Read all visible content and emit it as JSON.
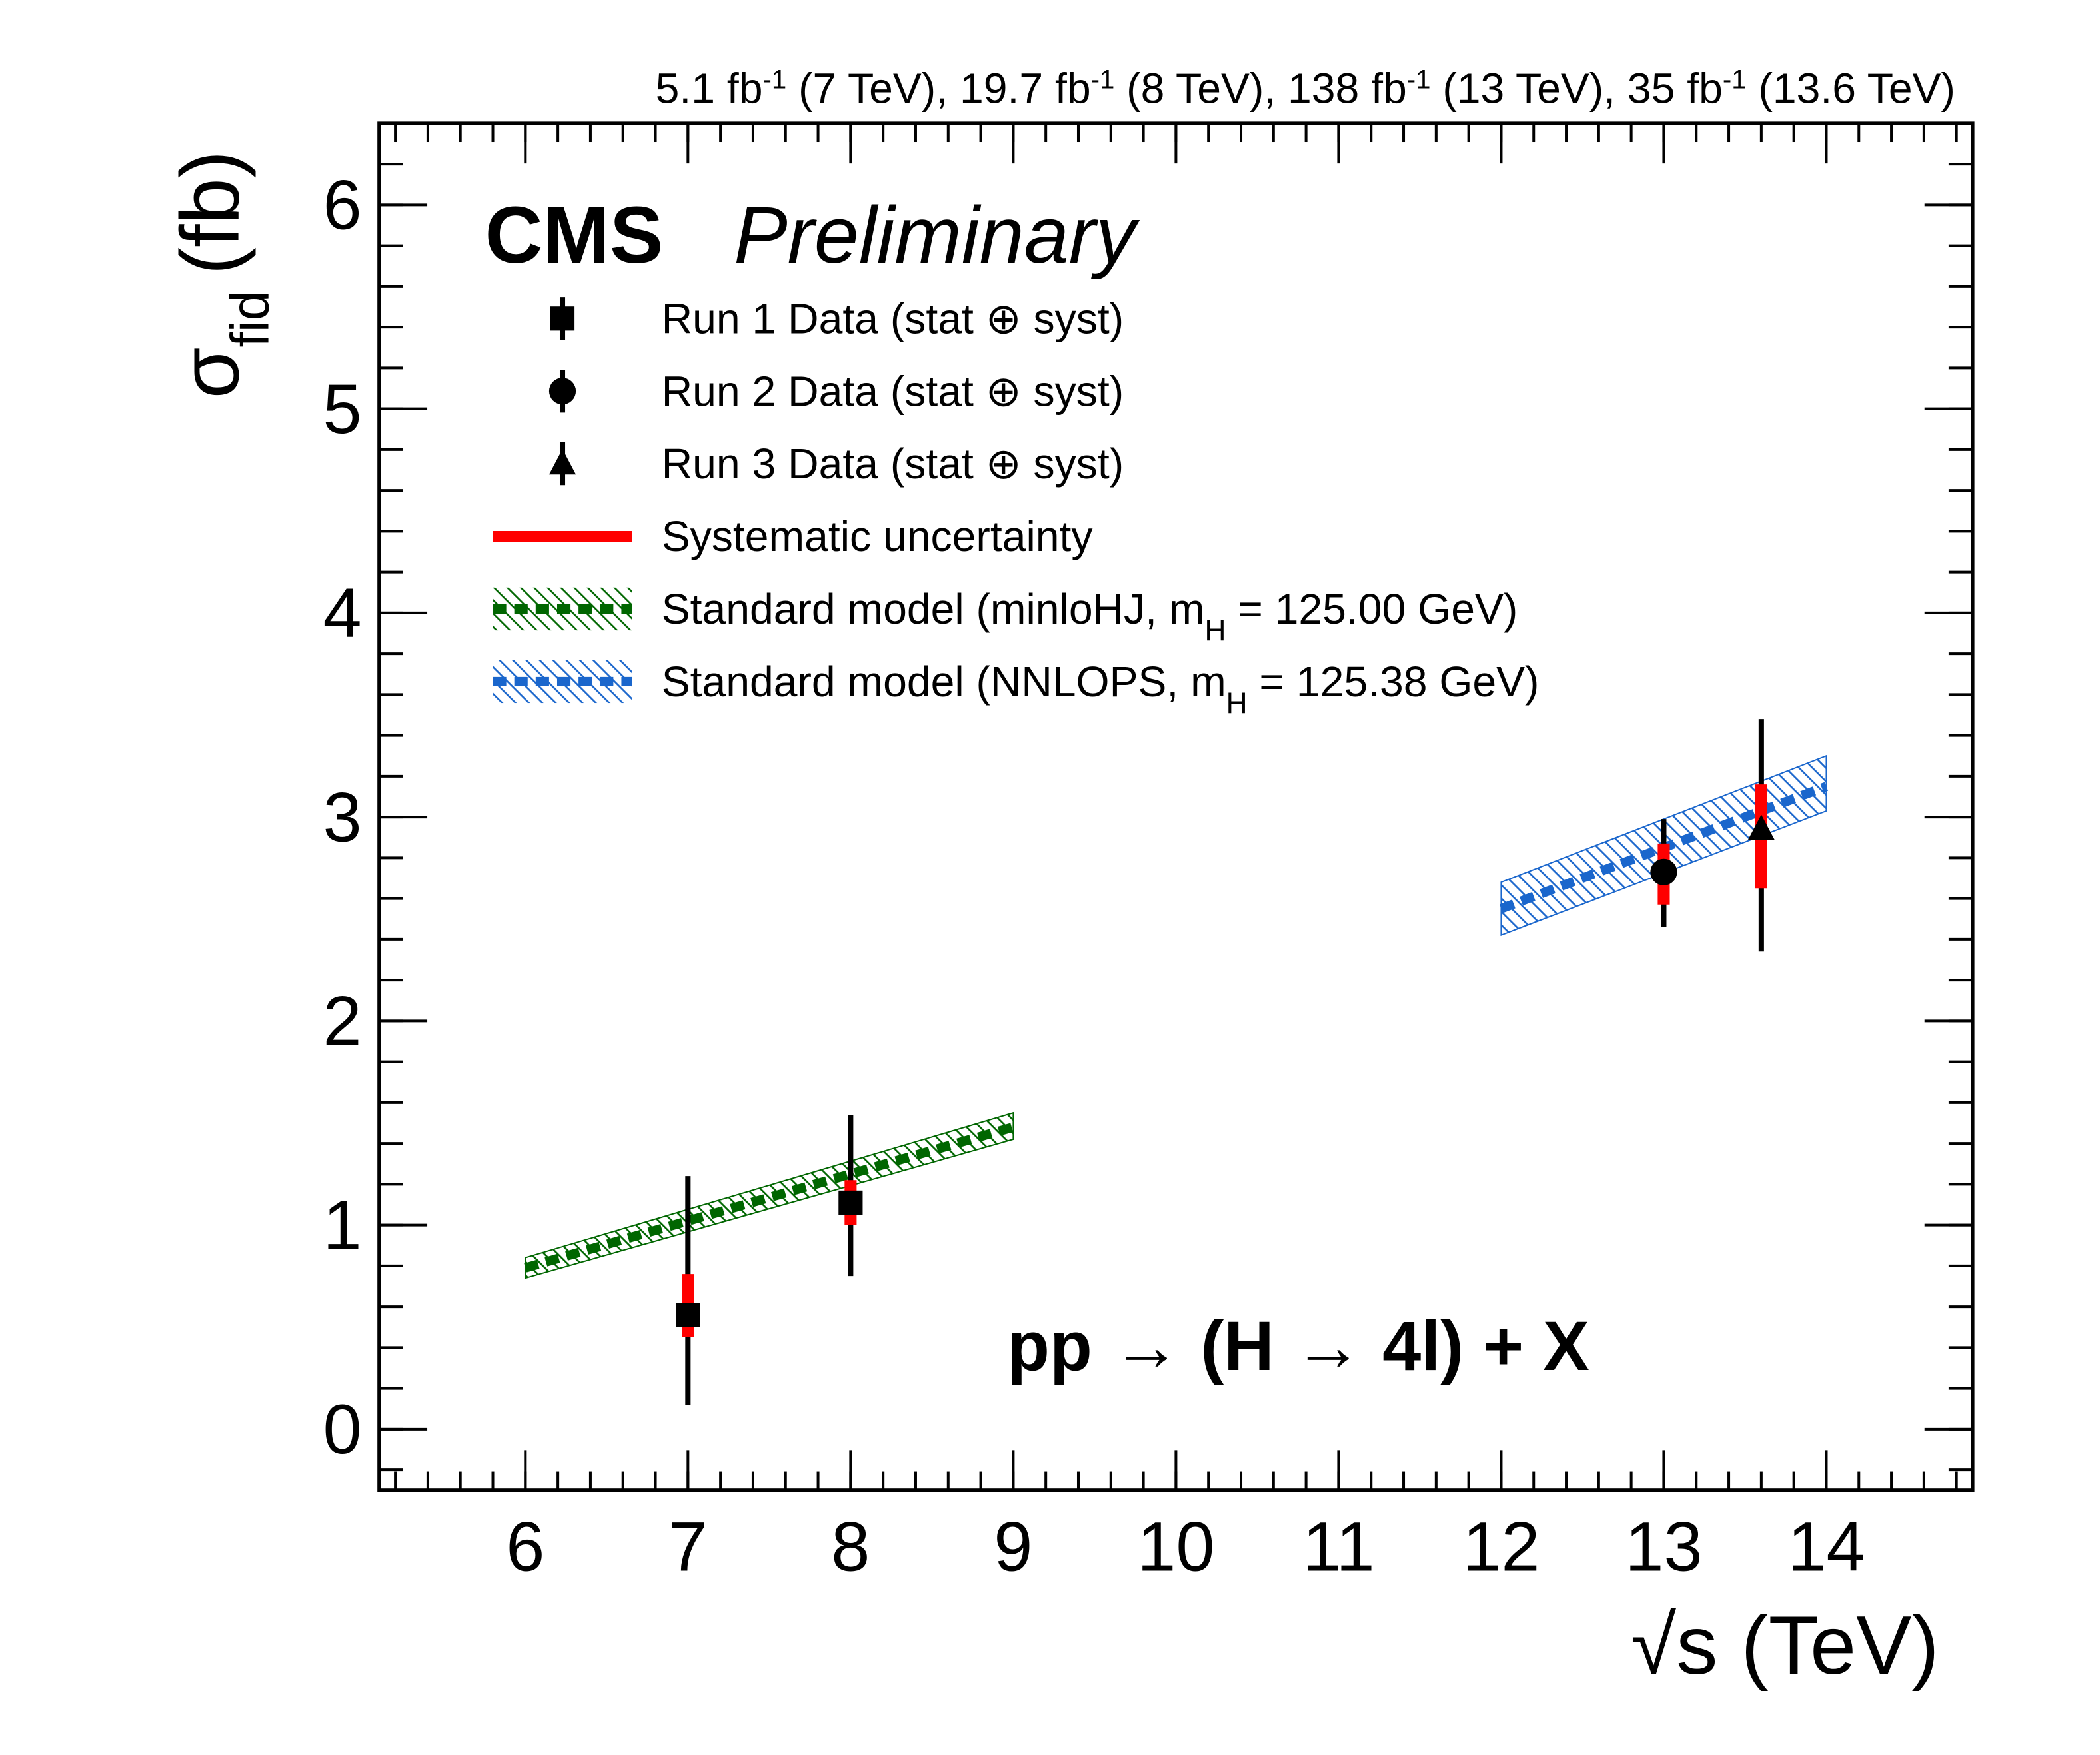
{
  "chart_data": {
    "type": "errorbar",
    "lumi": [
      "5.1 fb",
      "-1",
      " (7 TeV), 19.7 fb",
      "-1",
      " (8 TeV), 138 fb",
      "-1",
      " (13 TeV), 35 fb",
      "-1",
      " (13.6 TeV)"
    ],
    "cms": "CMS",
    "preliminary": "Preliminary",
    "process": "pp → (H → 4l) + X",
    "xlabel": "√s (TeV)",
    "ylabel": {
      "symbol": "σ",
      "sub": "fid",
      "unit": "(fb)"
    },
    "xlim": [
      5.1,
      14.9
    ],
    "ylim": [
      -0.3,
      6.4
    ],
    "xticks": [
      6,
      7,
      8,
      9,
      10,
      11,
      12,
      13,
      14
    ],
    "yticks": [
      0,
      1,
      2,
      3,
      4,
      5,
      6
    ],
    "minor_step": 0.2,
    "series": [
      {
        "name": "Run 1 Data (stat ⊕ syst)",
        "marker": "square",
        "color": "#000000",
        "x": [
          7,
          8
        ],
        "values": [
          0.56,
          1.11
        ],
        "total_low": [
          0.12,
          0.75
        ],
        "total_high": [
          1.24,
          1.54
        ],
        "syst_low": [
          0.45,
          1.0
        ],
        "syst_high": [
          0.76,
          1.22
        ]
      },
      {
        "name": "Run 2 Data (stat ⊕ syst)",
        "marker": "circle",
        "color": "#000000",
        "x": [
          13
        ],
        "values": [
          2.73
        ],
        "total_low": [
          2.46
        ],
        "total_high": [
          2.99
        ],
        "syst_low": [
          2.57
        ],
        "syst_high": [
          2.87
        ]
      },
      {
        "name": "Run 3 Data (stat ⊕ syst)",
        "marker": "triangle",
        "color": "#000000",
        "x": [
          13.6
        ],
        "values": [
          2.94
        ],
        "total_low": [
          2.34
        ],
        "total_high": [
          3.48
        ],
        "syst_low": [
          2.65
        ],
        "syst_high": [
          3.16
        ]
      }
    ],
    "syst": {
      "name": "Systematic uncertainty",
      "color": "#ff0000"
    },
    "bands": [
      {
        "name": "Standard model (minloHJ, m",
        "name_sub": "H",
        "name_after": " = 125.00 GeV)",
        "color": "#006600",
        "x": [
          6,
          9
        ],
        "values": [
          0.79,
          1.48
        ],
        "low": [
          0.74,
          1.42
        ],
        "high": [
          0.84,
          1.55
        ]
      },
      {
        "name": "Standard model (NNLOPS, m",
        "name_sub": "H",
        "name_after": " = 125.38 GeV)",
        "color": "#1a66cc",
        "x": [
          12,
          14
        ],
        "values": [
          2.55,
          3.15
        ],
        "low": [
          2.42,
          3.03
        ],
        "high": [
          2.68,
          3.3
        ]
      }
    ]
  }
}
